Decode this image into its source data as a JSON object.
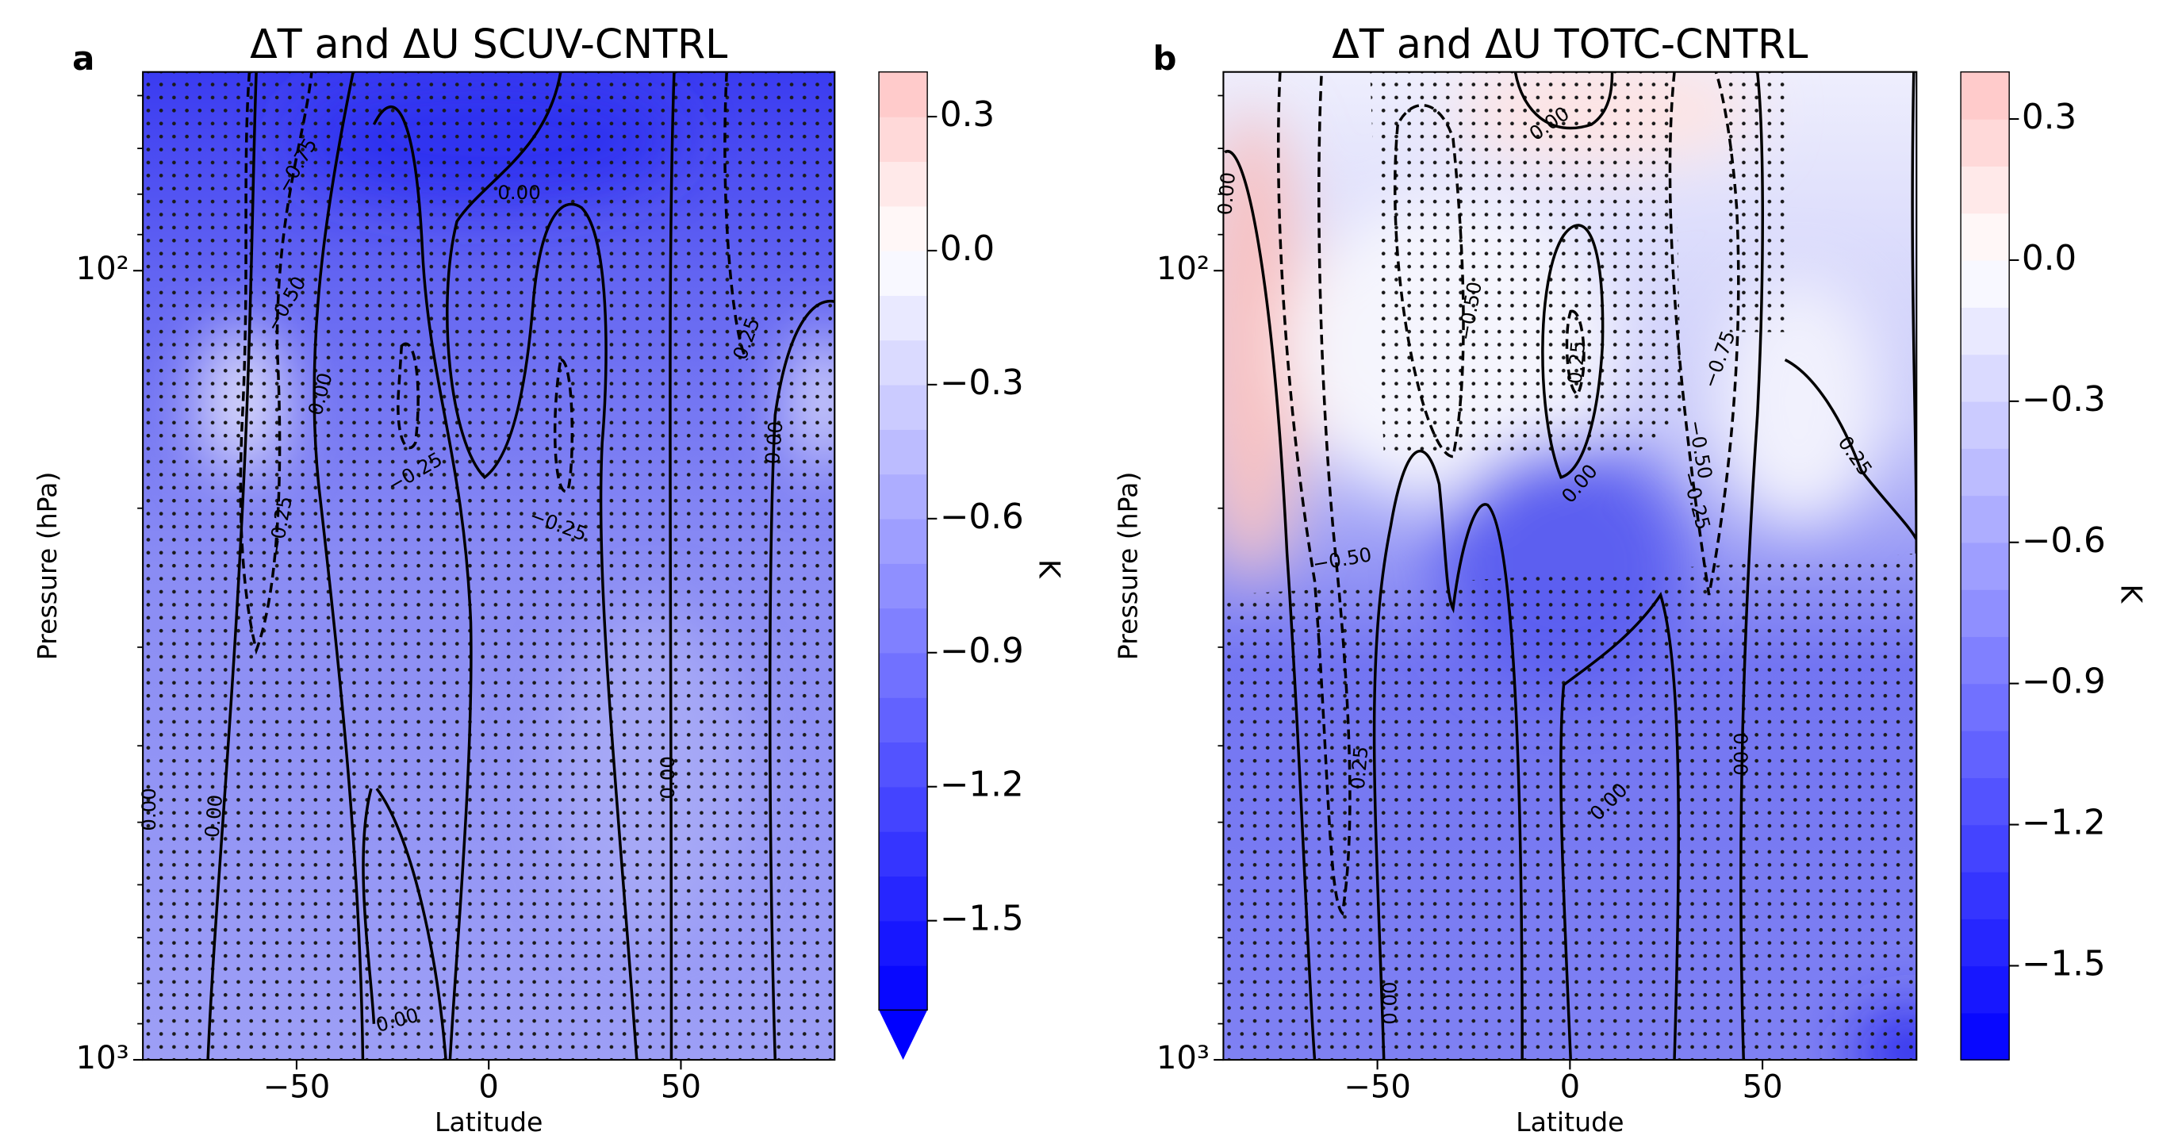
{
  "chart_data": [
    {
      "type": "contour",
      "panel_label": "a",
      "title": "ΔT and ΔU SCUV-CNTRL",
      "xlabel": "Latitude",
      "ylabel": "Pressure (hPa)",
      "xlim": [
        -90,
        90
      ],
      "xticks": [
        {
          "value": -50,
          "label": "−50"
        },
        0,
        50
      ],
      "ylim": [
        1000,
        56
      ],
      "log_y": true,
      "yticks": [
        {
          "value": 100,
          "label": "10²"
        },
        {
          "value": 1000,
          "label": "10³"
        }
      ],
      "yminorticks": [
        60,
        70,
        80,
        90,
        200,
        300,
        400,
        500,
        600,
        700,
        800,
        900
      ],
      "colorbar": {
        "label": "K",
        "cmap": "bwr",
        "clim": [
          -1.7,
          0.4
        ],
        "level_step": 0.1,
        "extend": "min",
        "ticks": [
          0.3,
          {
            "value": 0,
            "label": "0.0"
          },
          {
            "value": -0.3,
            "label": "−0.3"
          },
          {
            "value": -0.6,
            "label": "−0.6"
          },
          {
            "value": -0.9,
            "label": "−0.9"
          },
          {
            "value": -1.2,
            "label": "−1.2"
          },
          {
            "value": -1.5,
            "label": "−1.5"
          }
        ]
      },
      "contour_labels": [
        "−0.75",
        "−0.50",
        "0.00",
        "0.00",
        "−0.25",
        "−0.25",
        "−0.25",
        "0.25",
        "0.00",
        "0.00",
        "0.00",
        "0.00",
        "0.00"
      ]
    },
    {
      "type": "contour",
      "panel_label": "b",
      "title": "ΔT and ΔU TOTC-CNTRL",
      "xlabel": "Latitude",
      "ylabel": "Pressure (hPa)",
      "xlim": [
        -90,
        90
      ],
      "xticks": [
        {
          "value": -50,
          "label": "−50"
        },
        0,
        50
      ],
      "ylim": [
        1000,
        56
      ],
      "log_y": true,
      "yticks": [
        {
          "value": 100,
          "label": "10²"
        },
        {
          "value": 1000,
          "label": "10³"
        }
      ],
      "yminorticks": [
        60,
        70,
        80,
        90,
        200,
        300,
        400,
        500,
        600,
        700,
        800,
        900
      ],
      "colorbar": {
        "label": "K",
        "cmap": "bwr",
        "clim": [
          -1.7,
          0.4
        ],
        "level_step": 0.1,
        "extend": "neither",
        "ticks": [
          0.3,
          {
            "value": 0,
            "label": "0.0"
          },
          {
            "value": -0.3,
            "label": "−0.3"
          },
          {
            "value": -0.6,
            "label": "−0.6"
          },
          {
            "value": -0.9,
            "label": "−0.9"
          },
          {
            "value": -1.2,
            "label": "−1.2"
          },
          {
            "value": -1.5,
            "label": "−1.5"
          }
        ]
      },
      "contour_labels": [
        "0.00",
        "0.00",
        "−0.50",
        "0.25",
        "−0.75",
        "−0.50",
        "−0.25",
        "0.00",
        "0.25",
        "−0.50",
        "0.00",
        "0.00",
        "0.25",
        "0.00"
      ]
    }
  ]
}
